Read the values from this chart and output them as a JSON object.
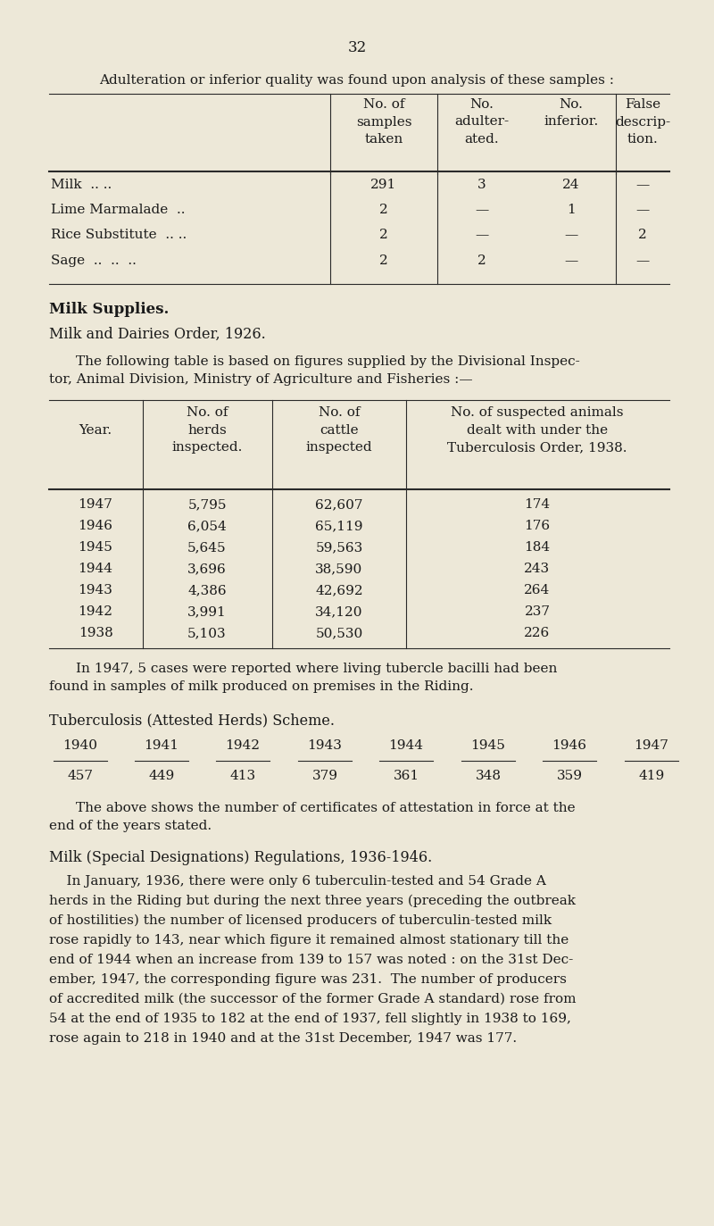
{
  "bg_color": "#ede8d8",
  "page_number": "32",
  "heading1": "Adulteration or inferior quality was found upon analysis of these samples :",
  "table1_col_headers": [
    "No. of\nsamples\ntaken",
    "No.\nadulter-\nated.",
    "No.\ninferior.",
    "False\ndescrip-\ntion."
  ],
  "table1_rows": [
    [
      "Milk  .. ..",
      "291",
      "3",
      "24",
      "—"
    ],
    [
      "Lime Marmalade ..",
      "2",
      "—",
      "1",
      "—"
    ],
    [
      "Rice Substitute .. ..",
      "2",
      "—",
      "—",
      "2"
    ],
    [
      "Sage  .. .. ..",
      "2",
      "2",
      "—",
      "—"
    ]
  ],
  "heading2_bold": "Milk Supplies.",
  "heading2_sc": "Milk and Dairies Order, 1926.",
  "para1_line1": "The following table is based on figures supplied by the Divisional Inspec-",
  "para1_line2": "tor, Animal Division, Ministry of Agriculture and Fisheries :—",
  "table2_col_headers": [
    "Year.",
    "No. of\nherds\ninspected.",
    "No. of\ncattle\ninspected",
    "No. of suspected animals\ndealt with under the\nTuberculosis Order, 1938."
  ],
  "table2_rows": [
    [
      "1947",
      "5,795",
      "62,607",
      "174"
    ],
    [
      "1946",
      "6,054",
      "65,119",
      "176"
    ],
    [
      "1945",
      "5,645",
      "59,563",
      "184"
    ],
    [
      "1944",
      "3,696",
      "38,590",
      "243"
    ],
    [
      "1943",
      "4,386",
      "42,692",
      "264"
    ],
    [
      "1942",
      "3,991",
      "34,120",
      "237"
    ],
    [
      "1938",
      "5,103",
      "50,530",
      "226"
    ]
  ],
  "para2_line1": "In 1947, 5 cases were reported where living tubercle bacilli had been",
  "para2_line2": "found in samples of milk produced on premises in the Riding.",
  "heading3": "Tuberculosis (Attested Herds) Scheme.",
  "table3_years": [
    "1940",
    "1941",
    "1942",
    "1943",
    "1944",
    "1945",
    "1946",
    "1947"
  ],
  "table3_values": [
    "457",
    "449",
    "413",
    "379",
    "361",
    "348",
    "359",
    "419"
  ],
  "para3_line1": "The above shows the number of certificates of attestation in force at the",
  "para3_line2": "end of the years stated.",
  "heading4": "Milk (Special Designations) Regulations, 1936-1946.",
  "para4_lines": [
    "    In January, 1936, there were only 6 tuberculin-tested and 54 Grade A",
    "herds in the Riding but during the next three years (preceding the outbreak",
    "of hostilities) the number of licensed producers of tuberculin-tested milk",
    "rose rapidly to 143, near which figure it remained almost stationary till the",
    "end of 1944 when an increase from 139 to 157 was noted : on the 31st Dec-",
    "ember, 1947, the corresponding figure was 231.  The number of producers",
    "of accredited milk (the successor of the former Grade A standard) rose from",
    "54 at the end of 1935 to 182 at the end of 1937, fell slightly in 1938 to 169,",
    "rose again to 218 in 1940 and at the 31st December, 1947 was 177."
  ]
}
